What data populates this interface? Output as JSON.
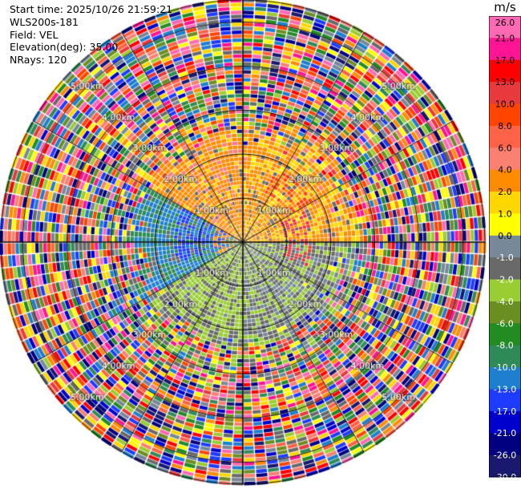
{
  "header": {
    "start_time": "Start time: 2025/10/26 21:59:21",
    "instrument": "WLS200s-181",
    "field": "Field: VEL",
    "elevation": "Elevation(deg): 35.00",
    "nrays": "NRays: 120"
  },
  "chart_data": {
    "type": "heatmap",
    "projection": "polar-ppi",
    "field": "VEL",
    "unit": "m/s",
    "nrays": 120,
    "max_range_km": 5.5,
    "range_rings_km": [
      1,
      2,
      3,
      4,
      5
    ],
    "ring_labels": [
      "1.00km",
      "2.00km",
      "3.00km",
      "4.00km",
      "5.00km"
    ],
    "spoke_step_deg": 30,
    "colorbar": {
      "ticks": [
        26.0,
        21.0,
        17.0,
        13.0,
        10.0,
        8.0,
        6.0,
        4.0,
        2.0,
        1.0,
        0.0,
        -1.0,
        -2.0,
        -4.0,
        -6.0,
        -8.0,
        -10.0,
        -13.0,
        -17.0,
        -21.0,
        -26.0,
        -30.0
      ],
      "tick_labels": [
        "26.0",
        "21.0",
        "17.0",
        "13.0",
        "10.0",
        "8.0",
        "6.0",
        "4.0",
        "2.0",
        "1.0",
        "0.0",
        "-1.0",
        "-2.0",
        "-4.0",
        "-6.0",
        "-8.0",
        "-10.0",
        "-13.0",
        "-17.0",
        "-21.0",
        "-26.0",
        "-30.0"
      ],
      "colors": [
        "#ff69b4",
        "#ff1493",
        "#ff0000",
        "#e8393c",
        "#ff4500",
        "#ff6347",
        "#fa8072",
        "#ff8c00",
        "#ffd700",
        "#ffff00",
        "#778899",
        "#696969",
        "#9acd32",
        "#6b8e23",
        "#228b22",
        "#2e8b57",
        "#1e7fd0",
        "#1e3cff",
        "#0000cd",
        "#000080",
        "#191970"
      ]
    },
    "pattern": {
      "near_range": [
        {
          "az_from": 0,
          "az_to": 90,
          "value": 2.5
        },
        {
          "az_from": 90,
          "az_to": 180,
          "value": -1.5
        },
        {
          "az_from": 180,
          "az_to": 240,
          "value": -2.5
        },
        {
          "az_from": 240,
          "az_to": 300,
          "value": -10.0
        },
        {
          "az_from": 300,
          "az_to": 360,
          "value": 3.0
        }
      ],
      "noise_beyond_km": 2.6
    }
  }
}
